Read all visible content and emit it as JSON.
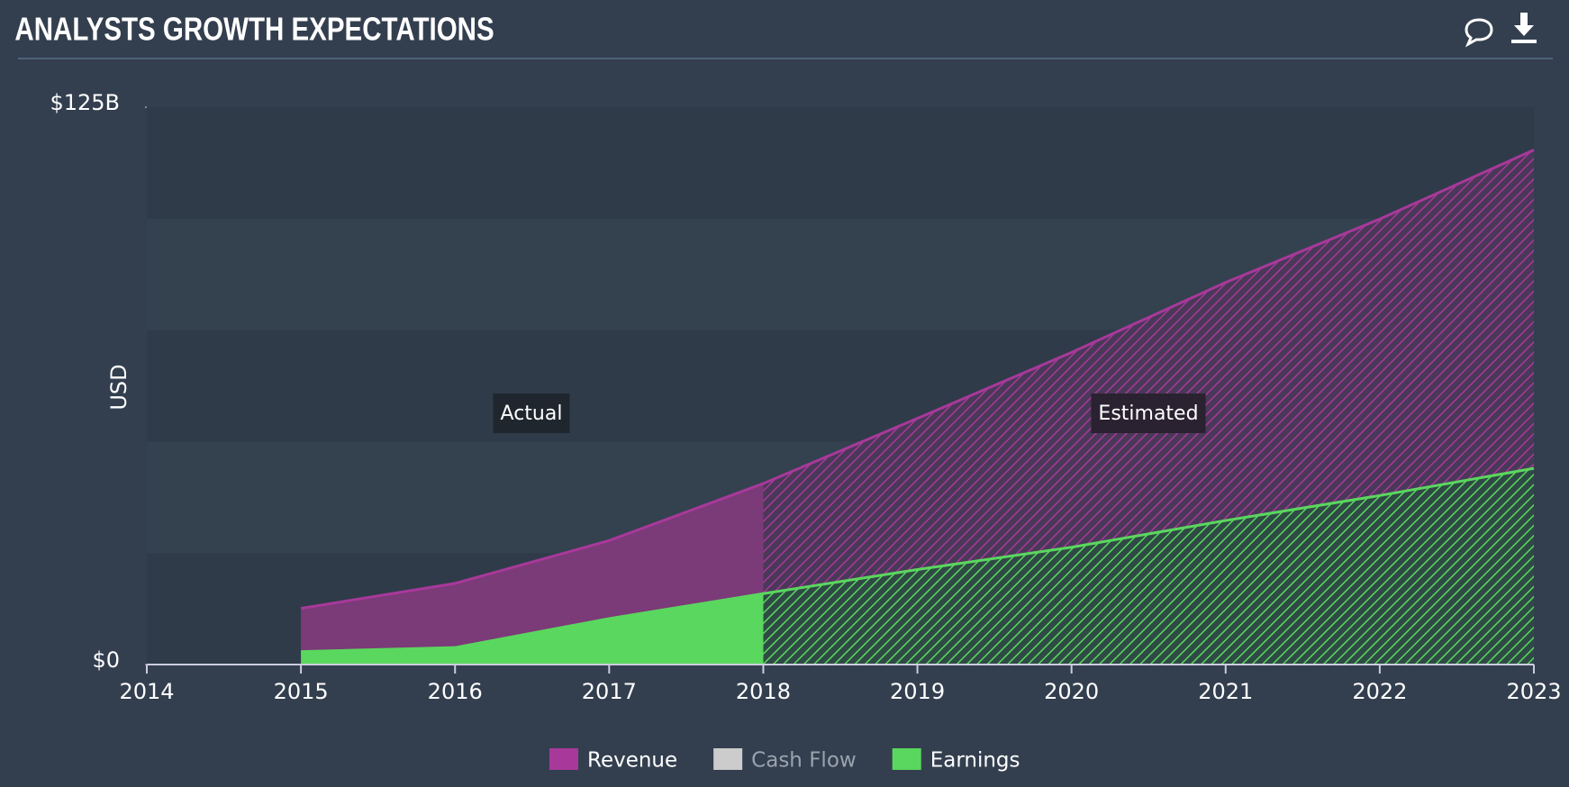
{
  "chart_data": {
    "type": "area",
    "title": "ANALYSTS GROWTH EXPECTATIONS",
    "y_label": "USD",
    "x": [
      2015,
      2016,
      2017,
      2018,
      2019,
      2020,
      2021,
      2022,
      2023
    ],
    "series": [
      {
        "name": "Revenue",
        "color": "#a8399a",
        "values": [
          12.6,
          18.2,
          27.8,
          40.6,
          55.2,
          70.0,
          85.7,
          99.9,
          115.4
        ]
      },
      {
        "name": "Cash Flow",
        "color": "#cccccc",
        "values": [
          null,
          null,
          null,
          null,
          null,
          null,
          null,
          null,
          null
        ]
      },
      {
        "name": "Earnings",
        "color": "#5ad75e",
        "values": [
          2.9,
          3.8,
          10.3,
          15.9,
          21.3,
          26.3,
          32.3,
          37.9,
          44.0
        ]
      }
    ],
    "forecast_start": 2018,
    "annotations": [
      "Actual",
      "Estimated"
    ],
    "xlim": [
      2014,
      2023
    ],
    "xticks": [
      2014,
      2015,
      2016,
      2017,
      2018,
      2019,
      2020,
      2021,
      2022,
      2023
    ],
    "ylim": [
      0,
      125
    ],
    "yticks": [
      {
        "value": 0,
        "label": "$0"
      },
      {
        "value": 125,
        "label": "$125B"
      }
    ]
  }
}
